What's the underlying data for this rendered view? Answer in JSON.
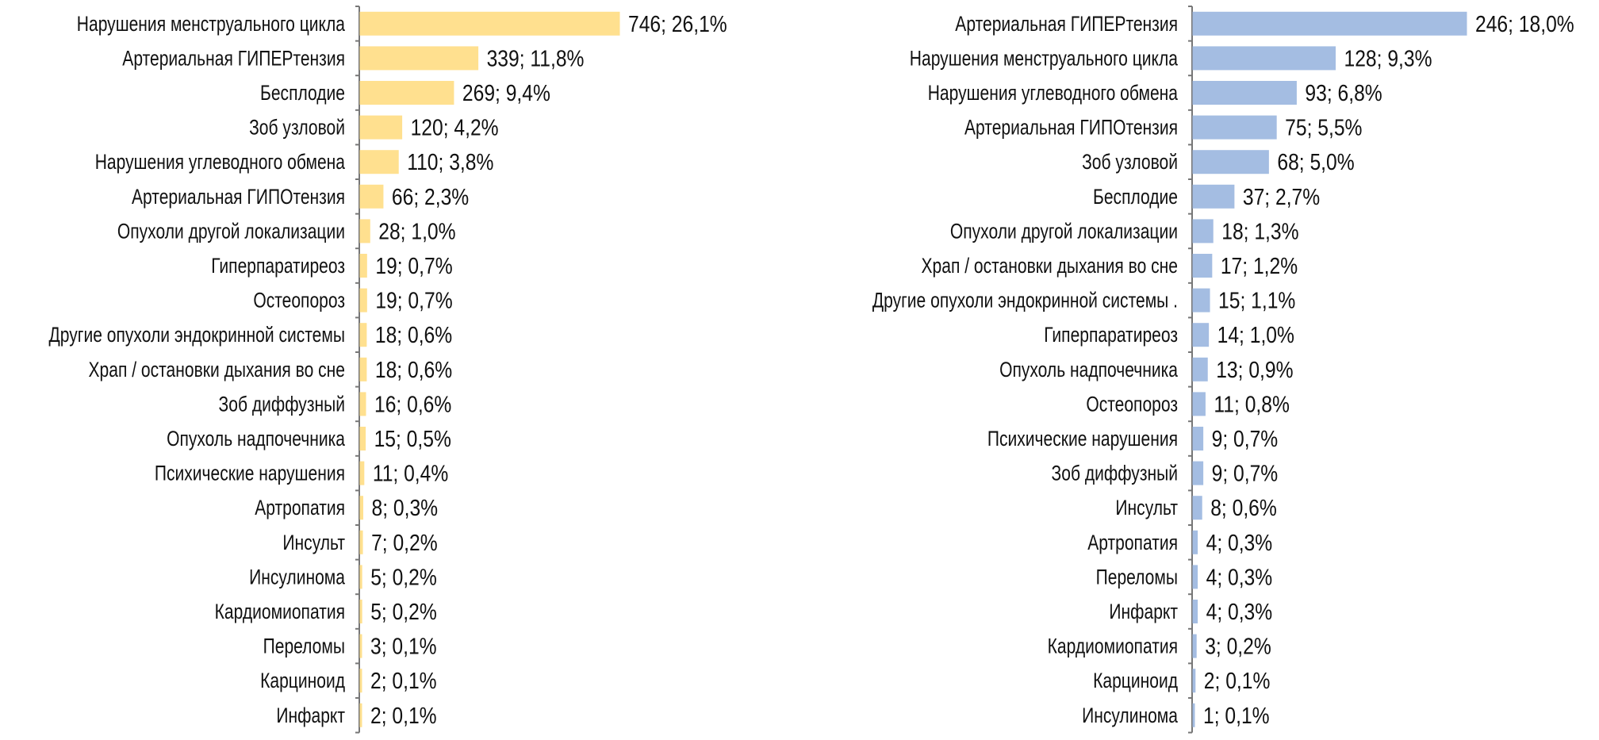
{
  "chart_data": [
    {
      "type": "bar",
      "orientation": "horizontal",
      "color": "#FFE08F",
      "categories": [
        "Нарушения менструального цикла",
        "Артериальная ГИПЕРтензия",
        "Бесплодие",
        "Зоб узловой",
        "Нарушения углеводного обмена",
        "Артериальная ГИПОтензия",
        "Опухоли другой локализации",
        "Гиперпаратиреоз",
        "Остеопороз",
        "Другие опухоли эндокринной системы",
        "Храп / остановки дыхания во сне",
        "Зоб диффузный",
        "Опухоль надпочечника",
        "Психические нарушения",
        "Артропатия",
        "Инсульт",
        "Инсулинома",
        "Кардиомиопатия",
        "Переломы",
        "Карциноид",
        "Инфаркт"
      ],
      "values": [
        746,
        339,
        269,
        120,
        110,
        66,
        28,
        19,
        19,
        18,
        18,
        16,
        15,
        11,
        8,
        7,
        5,
        5,
        3,
        2,
        2
      ],
      "data_labels": [
        "746; 26,1%",
        "339; 11,8%",
        "269; 9,4%",
        "120; 4,2%",
        "110; 3,8%",
        "66; 2,3%",
        "28; 1,0%",
        "19; 0,7%",
        "19; 0,7%",
        "18; 0,6%",
        "18; 0,6%",
        "16; 0,6%",
        "15; 0,5%",
        "11; 0,4%",
        "8; 0,3%",
        "7; 0,2%",
        "5; 0,2%",
        "5; 0,2%",
        "3; 0,1%",
        "2; 0,1%",
        "2; 0,1%"
      ],
      "xlim": [
        0,
        746
      ]
    },
    {
      "type": "bar",
      "orientation": "horizontal",
      "color": "#A4BDE2",
      "categories": [
        "Артериальная ГИПЕРтензия",
        "Нарушения менструального цикла",
        "Нарушения углеводного обмена",
        "Артериальная ГИПОтензия",
        "Зоб узловой",
        "Бесплодие",
        "Опухоли другой локализации",
        "Храп / остановки дыхания во сне",
        "Другие опухоли эндокринной системы .",
        "Гиперпаратиреоз",
        "Опухоль надпочечника",
        "Остеопороз",
        "Психические нарушения",
        "Зоб диффузный",
        "Инсульт",
        "Артропатия",
        "Переломы",
        "Инфаркт",
        "Кардиомиопатия",
        "Карциноид",
        "Инсулинома"
      ],
      "values": [
        246,
        128,
        93,
        75,
        68,
        37,
        18,
        17,
        15,
        14,
        13,
        11,
        9,
        9,
        8,
        4,
        4,
        4,
        3,
        2,
        1
      ],
      "data_labels": [
        "246; 18,0%",
        "128; 9,3%",
        "93; 6,8%",
        "75; 5,5%",
        "68; 5,0%",
        "37; 2,7%",
        "18; 1,3%",
        "17; 1,2%",
        "15; 1,1%",
        "14; 1,0%",
        "13; 0,9%",
        "11; 0,8%",
        "9; 0,7%",
        "9; 0,7%",
        "8; 0,6%",
        "4; 0,3%",
        "4; 0,3%",
        "4; 0,3%",
        "3; 0,2%",
        "2; 0,1%",
        "1; 0,1%"
      ],
      "xlim": [
        0,
        246
      ]
    }
  ]
}
